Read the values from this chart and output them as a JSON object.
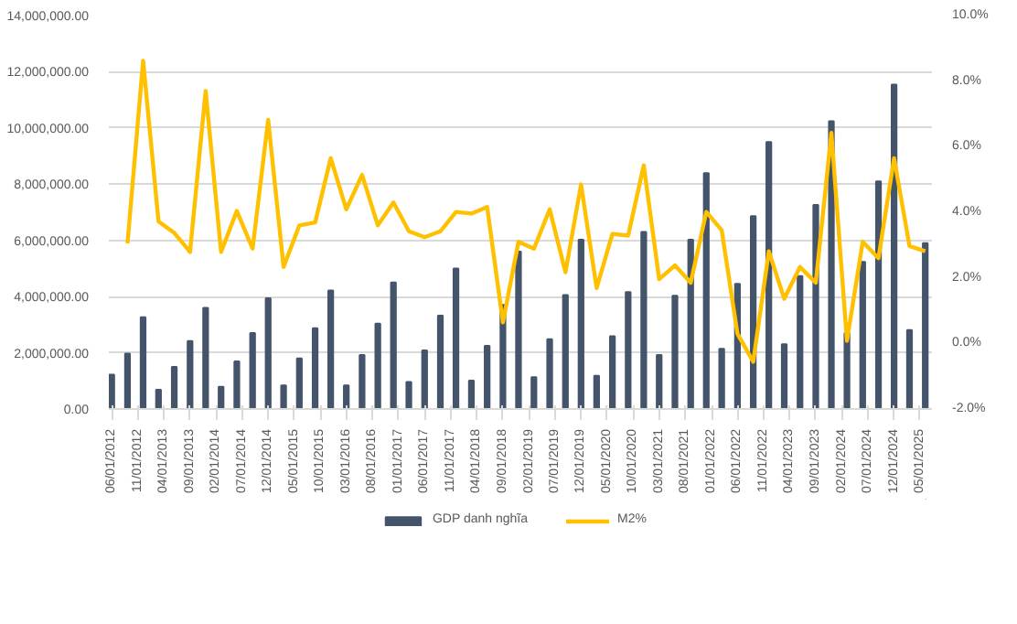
{
  "chart_data": {
    "type": "bar",
    "legend": "bottom",
    "grid": "y",
    "x": [
      "2012-06",
      "2012-09",
      "2012-12",
      "2013-03",
      "2013-06",
      "2013-09",
      "2013-12",
      "2014-03",
      "2014-06",
      "2014-09",
      "2014-12",
      "2015-03",
      "2015-06",
      "2015-09",
      "2015-12",
      "2016-03",
      "2016-06",
      "2016-09",
      "2016-12",
      "2017-03",
      "2017-06",
      "2017-09",
      "2017-12",
      "2018-03",
      "2018-06",
      "2018-09",
      "2018-12",
      "2019-03",
      "2019-06",
      "2019-09",
      "2019-12",
      "2020-03",
      "2020-06",
      "2020-09",
      "2020-12",
      "2021-03",
      "2021-06",
      "2021-09",
      "2021-12",
      "2022-03",
      "2022-06",
      "2022-09",
      "2022-12",
      "2023-03",
      "2023-06",
      "2023-09",
      "2023-12",
      "2024-03",
      "2024-06",
      "2024-09",
      "2024-12",
      "2025-03",
      "2025-06"
    ],
    "series": [
      {
        "name": "GDP danh nghĩa",
        "color": "#44546a",
        "values": [
          1220000,
          1970000,
          3260000,
          680000,
          1500000,
          2420000,
          3600000,
          790000,
          1690000,
          2700000,
          3940000,
          840000,
          1800000,
          2870000,
          4220000,
          840000,
          1920000,
          3040000,
          4500000,
          960000,
          2080000,
          3320000,
          5000000,
          1010000,
          2250000,
          3700000,
          5600000,
          1130000,
          2480000,
          4050000,
          6020000,
          1180000,
          2590000,
          4160000,
          6300000,
          1920000,
          4030000,
          6020000,
          8390000,
          2140000,
          4450000,
          6860000,
          9500000,
          2300000,
          4730000,
          7260000,
          10240000,
          2700000,
          5230000,
          8100000,
          11540000,
          2810000,
          5900000
        ]
      },
      {
        "name": "M2%",
        "type": "line",
        "axis": "y2",
        "color": "#ffc000",
        "values": [
          null,
          3.05,
          8.62,
          3.72,
          3.37,
          2.79,
          7.7,
          2.79,
          4.04,
          2.89,
          6.82,
          2.33,
          3.6,
          3.69,
          5.65,
          4.09,
          5.14,
          3.6,
          4.3,
          3.42,
          3.24,
          3.42,
          4.01,
          3.96,
          4.16,
          0.64,
          3.1,
          2.89,
          4.09,
          2.17,
          4.85,
          1.69,
          3.34,
          3.29,
          5.43,
          1.96,
          2.38,
          1.85,
          4.01,
          3.45,
          0.29,
          -0.56,
          2.81,
          1.36,
          2.33,
          1.85,
          6.42,
          0.08,
          3.1,
          2.6,
          5.65,
          2.97,
          2.81
        ]
      }
    ],
    "xlim": [
      "2012-05-15",
      "2025-07-10"
    ],
    "xticks": [
      {
        "value": "2012-06",
        "label": "06/01/2012"
      },
      {
        "value": "2012-11",
        "label": "11/01/2012"
      },
      {
        "value": "2013-04",
        "label": "04/01/2013"
      },
      {
        "value": "2013-09",
        "label": "09/01/2013"
      },
      {
        "value": "2014-02",
        "label": "02/01/2014"
      },
      {
        "value": "2014-07",
        "label": "07/01/2014"
      },
      {
        "value": "2014-12",
        "label": "12/01/2014"
      },
      {
        "value": "2015-05",
        "label": "05/01/2015"
      },
      {
        "value": "2015-10",
        "label": "10/01/2015"
      },
      {
        "value": "2016-03",
        "label": "03/01/2016"
      },
      {
        "value": "2016-08",
        "label": "08/01/2016"
      },
      {
        "value": "2017-01",
        "label": "01/01/2017"
      },
      {
        "value": "2017-06",
        "label": "06/01/2017"
      },
      {
        "value": "2017-11",
        "label": "11/01/2017"
      },
      {
        "value": "2018-04",
        "label": "04/01/2018"
      },
      {
        "value": "2018-09",
        "label": "09/01/2018"
      },
      {
        "value": "2019-02",
        "label": "02/01/2019"
      },
      {
        "value": "2019-07",
        "label": "07/01/2019"
      },
      {
        "value": "2019-12",
        "label": "12/01/2019"
      },
      {
        "value": "2020-05",
        "label": "05/01/2020"
      },
      {
        "value": "2020-10",
        "label": "10/01/2020"
      },
      {
        "value": "2021-03",
        "label": "03/01/2021"
      },
      {
        "value": "2021-08",
        "label": "08/01/2021"
      },
      {
        "value": "2022-01",
        "label": "01/01/2022"
      },
      {
        "value": "2022-06",
        "label": "06/01/2022"
      },
      {
        "value": "2022-11",
        "label": "11/01/2022"
      },
      {
        "value": "2023-04",
        "label": "04/01/2023"
      },
      {
        "value": "2023-09",
        "label": "09/01/2023"
      },
      {
        "value": "2024-02",
        "label": "02/01/2024"
      },
      {
        "value": "2024-07",
        "label": "07/01/2024"
      },
      {
        "value": "2024-12",
        "label": "12/01/2024"
      },
      {
        "value": "2025-05",
        "label": "05/01/2025"
      }
    ],
    "ylim": [
      0,
      14000000
    ],
    "yticks": [
      {
        "value": 0,
        "label": "0.00"
      },
      {
        "value": 2000000,
        "label": "2,000,000.00"
      },
      {
        "value": 4000000,
        "label": "4,000,000.00"
      },
      {
        "value": 6000000,
        "label": "6,000,000.00"
      },
      {
        "value": 8000000,
        "label": "8,000,000.00"
      },
      {
        "value": 10000000,
        "label": "10,000,000.00"
      },
      {
        "value": 12000000,
        "label": "12,000,000.00"
      },
      {
        "value": 14000000,
        "label": "14,000,000.00"
      }
    ],
    "y2lim": [
      -2,
      10
    ],
    "y2ticks": [
      {
        "value": -2,
        "label": "-2.0%"
      },
      {
        "value": 0,
        "label": "0.0%"
      },
      {
        "value": 2,
        "label": "2.0%"
      },
      {
        "value": 4,
        "label": "4.0%"
      },
      {
        "value": 6,
        "label": "6.0%"
      },
      {
        "value": 8,
        "label": "8.0%"
      },
      {
        "value": 10,
        "label": "10.0%"
      }
    ]
  }
}
